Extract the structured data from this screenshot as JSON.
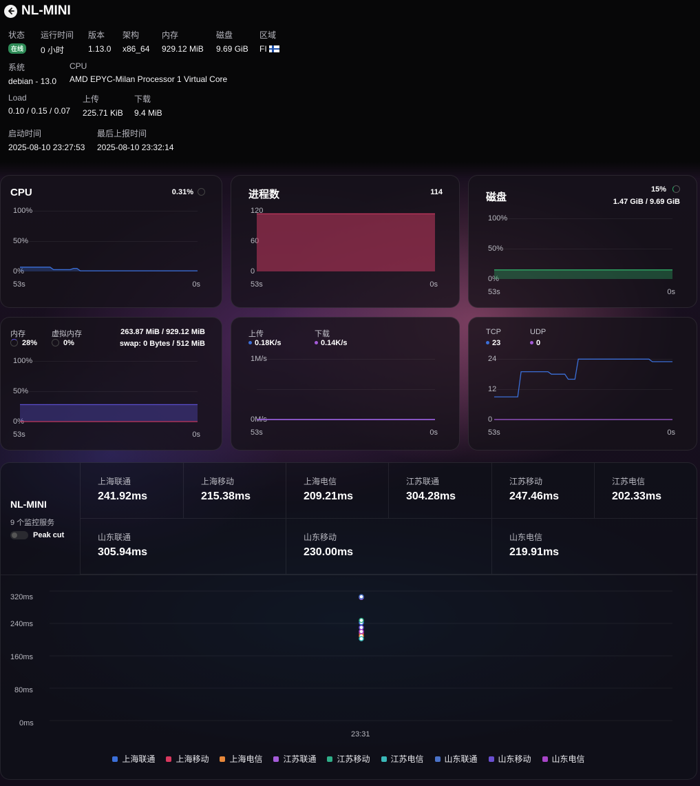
{
  "header": {
    "title": "NL-MINI",
    "status_label": "状态",
    "status_value": "在线",
    "uptime_label": "运行时间",
    "uptime_value": "0 小时",
    "version_label": "版本",
    "version_value": "1.13.0",
    "arch_label": "架构",
    "arch_value": "x86_64",
    "mem_label": "内存",
    "mem_value": "929.12 MiB",
    "disk_label": "磁盘",
    "disk_value": "9.69 GiB",
    "region_label": "区域",
    "region_value": "FI",
    "os_label": "系统",
    "os_value": "debian - 13.0",
    "cpu_label": "CPU",
    "cpu_value": "AMD EPYC-Milan Processor 1 Virtual Core",
    "load_label": "Load",
    "load_value": "0.10 / 0.15 / 0.07",
    "upload_label": "上传",
    "upload_value": "225.71 KiB",
    "download_label": "下载",
    "download_value": "9.4 MiB",
    "boot_label": "启动时间",
    "boot_value": "2025-08-10 23:27:53",
    "report_label": "最后上报时间",
    "report_value": "2025-08-10 23:32:14"
  },
  "cpu_card": {
    "title": "CPU",
    "value": "0.31%",
    "y_ticks": [
      "100%",
      "50%",
      "0%"
    ],
    "x_start": "53s",
    "x_end": "0s",
    "series": [
      7,
      7,
      7,
      7,
      7,
      7,
      7,
      7,
      7,
      7,
      3,
      3,
      3,
      3,
      3,
      3,
      5,
      5,
      1,
      1,
      1,
      1,
      1,
      1,
      1,
      1,
      1,
      1,
      1,
      1,
      1,
      1,
      1,
      1,
      1,
      1,
      1,
      1,
      1,
      1,
      1,
      1,
      1,
      1,
      1,
      1,
      1,
      1,
      1,
      1,
      1,
      1,
      1,
      1
    ],
    "color": "#3b6fd8"
  },
  "proc_card": {
    "title": "进程数",
    "value": "114",
    "y_ticks": [
      "120",
      "60",
      "0"
    ],
    "x_start": "53s",
    "x_end": "0s",
    "series": [
      114,
      114
    ],
    "max": 120,
    "color": "#c2385e"
  },
  "disk_card": {
    "title": "磁盘",
    "percent": "15%",
    "detail": "1.47 GiB / 9.69 GiB",
    "y_ticks": [
      "100%",
      "50%",
      "0%"
    ],
    "x_start": "53s",
    "x_end": "0s",
    "series": [
      15,
      15
    ],
    "color": "#2fae68"
  },
  "mem_card": {
    "mem_label": "内存",
    "mem_percent": "28%",
    "swap_label": "虚拟内存",
    "swap_percent": "0%",
    "mem_detail": "263.87 MiB / 929.12 MiB",
    "swap_detail": "swap: 0 Bytes / 512 MiB",
    "y_ticks": [
      "100%",
      "50%",
      "0%"
    ],
    "x_start": "53s",
    "x_end": "0s",
    "mem_series": [
      28,
      28
    ],
    "swap_series": [
      0,
      0
    ],
    "mem_color": "#5b4fd0",
    "swap_color": "#c2385e"
  },
  "net_card": {
    "up_label": "上传",
    "up_value": "0.18K/s",
    "down_label": "下载",
    "down_value": "0.14K/s",
    "y_ticks": [
      "1M/s",
      "0M/s"
    ],
    "x_start": "53s",
    "x_end": "0s",
    "up_color": "#3b6fd8",
    "down_color": "#a45bd8"
  },
  "conn_card": {
    "tcp_label": "TCP",
    "tcp_value": "23",
    "udp_label": "UDP",
    "udp_value": "0",
    "y_ticks": [
      "24",
      "12",
      "0"
    ],
    "x_start": "53s",
    "x_end": "0s",
    "tcp_series": [
      9,
      9,
      9,
      9,
      9,
      9,
      9,
      9,
      19,
      19,
      19,
      19,
      19,
      19,
      19,
      19,
      19,
      18,
      18,
      18,
      18,
      18,
      16,
      16,
      16,
      24,
      24,
      24,
      24,
      24,
      24,
      24,
      24,
      24,
      24,
      24,
      24,
      24,
      24,
      24,
      24,
      24,
      24,
      24,
      24,
      24,
      24,
      23,
      23,
      23,
      23,
      23,
      23,
      23
    ],
    "udp_series": [
      0,
      0
    ],
    "max": 26,
    "tcp_color": "#3b6fd8",
    "udp_color": "#a45bd8"
  },
  "ping": {
    "name": "NL-MINI",
    "subtitle": "9 个监控服务",
    "peak_label": "Peak cut",
    "cells": [
      {
        "label": "上海联通",
        "value": "241.92ms"
      },
      {
        "label": "上海移动",
        "value": "215.38ms"
      },
      {
        "label": "上海电信",
        "value": "209.21ms"
      },
      {
        "label": "江苏联通",
        "value": "304.28ms"
      },
      {
        "label": "江苏移动",
        "value": "247.46ms"
      },
      {
        "label": "江苏电信",
        "value": "202.33ms"
      },
      {
        "label": "山东联通",
        "value": "305.94ms"
      },
      {
        "label": "山东移动",
        "value": "230.00ms"
      },
      {
        "label": "山东电信",
        "value": "219.91ms"
      }
    ]
  },
  "chart_data": {
    "type": "scatter",
    "y_ticks": [
      "320ms",
      "240ms",
      "160ms",
      "80ms",
      "0ms"
    ],
    "ylim": [
      0,
      340
    ],
    "x_tick": "23:31",
    "series": [
      {
        "name": "上海联通",
        "color": "#3b6fd8",
        "values": [
          241.92
        ]
      },
      {
        "name": "上海移动",
        "color": "#d8385e",
        "values": [
          215.38
        ]
      },
      {
        "name": "上海电信",
        "color": "#e8883a",
        "values": [
          209.21
        ]
      },
      {
        "name": "江苏联通",
        "color": "#a45bd8",
        "values": [
          304.28
        ]
      },
      {
        "name": "江苏移动",
        "color": "#2fae88",
        "values": [
          247.46
        ]
      },
      {
        "name": "江苏电信",
        "color": "#3ab8b8",
        "values": [
          202.33
        ]
      },
      {
        "name": "山东联通",
        "color": "#4a72c8",
        "values": [
          305.94
        ]
      },
      {
        "name": "山东移动",
        "color": "#6a4fd0",
        "values": [
          230.0
        ]
      },
      {
        "name": "山东电信",
        "color": "#a845c8",
        "values": [
          219.91
        ]
      }
    ]
  }
}
